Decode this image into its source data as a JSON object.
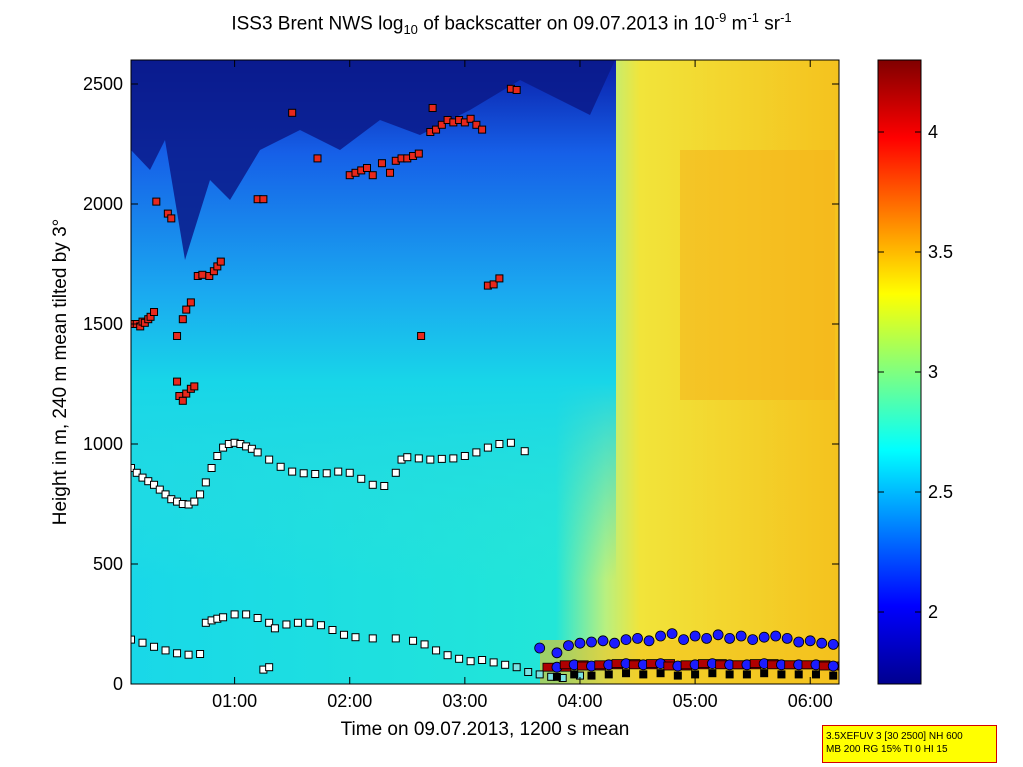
{
  "title": {
    "prefix": "ISS3 Brent NWS log",
    "sub": "10",
    "middle": " of backscatter on 09.07.2013 in 10",
    "exp1": "-9",
    "unit_m": " m",
    "exp2": "-1",
    "unit_sr": " sr",
    "exp3": "-1"
  },
  "info_box": {
    "line1": "3.5XEFUV 3 [30 2500] NH 600",
    "line2": "MB 200 RG 15% TI 0 HI 15"
  },
  "colors": {
    "marker_red": "#e8281c",
    "marker_white": "#ffffff",
    "marker_cyan": "#7be3e3",
    "marker_blue": "#1c1cff",
    "marker_darkred": "#b00000"
  },
  "chart_data": {
    "type": "heatmap",
    "title": "ISS3 Brent NWS log10 of backscatter on 09.07.2013 in 10-9 m-1 sr-1",
    "xlabel": "Time on 09.07.2013, 1200 s mean",
    "ylabel": "Height in m, 240 m mean tilted by 3°",
    "xlim_hours": [
      0.1,
      6.25
    ],
    "ylim": [
      0,
      2600
    ],
    "x_ticks": [
      {
        "value": 1,
        "label": "01:00"
      },
      {
        "value": 2,
        "label": "02:00"
      },
      {
        "value": 3,
        "label": "03:00"
      },
      {
        "value": 4,
        "label": "04:00"
      },
      {
        "value": 5,
        "label": "05:00"
      },
      {
        "value": 6,
        "label": "06:00"
      }
    ],
    "y_ticks": [
      {
        "value": 0,
        "label": "0"
      },
      {
        "value": 500,
        "label": "500"
      },
      {
        "value": 1000,
        "label": "1000"
      },
      {
        "value": 1500,
        "label": "1500"
      },
      {
        "value": 2000,
        "label": "2000"
      },
      {
        "value": 2500,
        "label": "2500"
      }
    ],
    "colorbar": {
      "range": [
        1.7,
        4.3
      ],
      "ticks": [
        {
          "value": 2,
          "label": "2"
        },
        {
          "value": 2.5,
          "label": "2.5"
        },
        {
          "value": 3,
          "label": "3"
        },
        {
          "value": 3.5,
          "label": "3.5"
        },
        {
          "value": 4,
          "label": "4"
        }
      ]
    },
    "cloud_layer_red": [
      [
        0.12,
        1500
      ],
      [
        0.15,
        1500
      ],
      [
        0.18,
        1490
      ],
      [
        0.2,
        1510
      ],
      [
        0.22,
        1505
      ],
      [
        0.25,
        1520
      ],
      [
        0.27,
        1530
      ],
      [
        0.3,
        1550
      ],
      [
        0.32,
        2010
      ],
      [
        0.42,
        1960
      ],
      [
        0.45,
        1940
      ],
      [
        0.5,
        1450
      ],
      [
        0.55,
        1520
      ],
      [
        0.58,
        1560
      ],
      [
        0.62,
        1590
      ],
      [
        0.5,
        1260
      ],
      [
        0.52,
        1200
      ],
      [
        0.55,
        1180
      ],
      [
        0.58,
        1210
      ],
      [
        0.62,
        1230
      ],
      [
        0.65,
        1240
      ],
      [
        0.68,
        1700
      ],
      [
        0.72,
        1705
      ],
      [
        0.78,
        1700
      ],
      [
        0.82,
        1720
      ],
      [
        0.85,
        1740
      ],
      [
        0.88,
        1760
      ],
      [
        1.2,
        2020
      ],
      [
        1.25,
        2020
      ],
      [
        1.5,
        2380
      ],
      [
        1.72,
        2190
      ],
      [
        2.0,
        2120
      ],
      [
        2.05,
        2130
      ],
      [
        2.1,
        2140
      ],
      [
        2.15,
        2150
      ],
      [
        2.2,
        2120
      ],
      [
        2.28,
        2170
      ],
      [
        2.35,
        2130
      ],
      [
        2.4,
        2180
      ],
      [
        2.45,
        2190
      ],
      [
        2.5,
        2190
      ],
      [
        2.55,
        2200
      ],
      [
        2.6,
        2210
      ],
      [
        2.62,
        1450
      ],
      [
        2.7,
        2300
      ],
      [
        2.75,
        2310
      ],
      [
        2.8,
        2330
      ],
      [
        2.85,
        2350
      ],
      [
        2.9,
        2340
      ],
      [
        2.95,
        2350
      ],
      [
        3.0,
        2340
      ],
      [
        3.05,
        2355
      ],
      [
        3.1,
        2330
      ],
      [
        3.15,
        2310
      ],
      [
        2.72,
        2400
      ],
      [
        3.2,
        1660
      ],
      [
        3.25,
        1665
      ],
      [
        3.3,
        1690
      ],
      [
        3.4,
        2480
      ],
      [
        3.45,
        2475
      ]
    ],
    "upper_boundary_white": [
      [
        0.1,
        900
      ],
      [
        0.15,
        880
      ],
      [
        0.2,
        860
      ],
      [
        0.25,
        845
      ],
      [
        0.3,
        830
      ],
      [
        0.35,
        810
      ],
      [
        0.4,
        790
      ],
      [
        0.45,
        770
      ],
      [
        0.5,
        760
      ],
      [
        0.55,
        750
      ],
      [
        0.6,
        748
      ],
      [
        0.65,
        760
      ],
      [
        0.7,
        790
      ],
      [
        0.75,
        840
      ],
      [
        0.8,
        900
      ],
      [
        0.85,
        950
      ],
      [
        0.9,
        985
      ],
      [
        0.95,
        1000
      ],
      [
        1.0,
        1005
      ],
      [
        1.05,
        1000
      ],
      [
        1.1,
        990
      ],
      [
        1.15,
        980
      ],
      [
        1.2,
        965
      ],
      [
        1.3,
        935
      ],
      [
        1.4,
        905
      ],
      [
        1.5,
        885
      ],
      [
        1.6,
        878
      ],
      [
        1.7,
        875
      ],
      [
        1.8,
        878
      ],
      [
        1.9,
        885
      ],
      [
        2.0,
        880
      ],
      [
        2.1,
        855
      ],
      [
        2.2,
        830
      ],
      [
        2.3,
        825
      ],
      [
        2.4,
        880
      ],
      [
        2.45,
        935
      ],
      [
        2.5,
        945
      ],
      [
        2.6,
        940
      ],
      [
        2.7,
        935
      ],
      [
        2.8,
        938
      ],
      [
        2.9,
        940
      ],
      [
        3.0,
        950
      ],
      [
        3.1,
        965
      ],
      [
        3.2,
        985
      ],
      [
        3.3,
        1000
      ],
      [
        3.4,
        1005
      ],
      [
        3.52,
        970
      ]
    ],
    "lower_boundary": [
      [
        0.1,
        185
      ],
      [
        0.2,
        172
      ],
      [
        0.3,
        155
      ],
      [
        0.4,
        140
      ],
      [
        0.5,
        128
      ],
      [
        0.6,
        122
      ],
      [
        0.7,
        125
      ],
      [
        0.75,
        255
      ],
      [
        0.8,
        265
      ],
      [
        0.85,
        272
      ],
      [
        0.9,
        278
      ],
      [
        1.0,
        290
      ],
      [
        1.1,
        290
      ],
      [
        1.2,
        275
      ],
      [
        1.3,
        255
      ],
      [
        1.35,
        232
      ],
      [
        1.45,
        248
      ],
      [
        1.55,
        255
      ],
      [
        1.65,
        255
      ],
      [
        1.75,
        245
      ],
      [
        1.85,
        225
      ],
      [
        1.95,
        205
      ],
      [
        2.05,
        195
      ],
      [
        2.2,
        190
      ],
      [
        2.4,
        190
      ],
      [
        2.55,
        180
      ],
      [
        2.65,
        165
      ],
      [
        2.75,
        140
      ],
      [
        2.85,
        120
      ],
      [
        2.95,
        105
      ],
      [
        3.05,
        95
      ],
      [
        3.15,
        100
      ],
      [
        3.25,
        90
      ],
      [
        3.35,
        80
      ],
      [
        3.45,
        70
      ],
      [
        3.55,
        50
      ],
      [
        3.65,
        40
      ],
      [
        3.75,
        30
      ],
      [
        3.85,
        25
      ],
      [
        4.0,
        35
      ],
      [
        1.25,
        60
      ],
      [
        1.3,
        70
      ]
    ],
    "low_cloud_blue_top": [
      [
        3.65,
        150
      ],
      [
        3.8,
        130
      ],
      [
        3.9,
        160
      ],
      [
        4.0,
        170
      ],
      [
        4.1,
        175
      ],
      [
        4.2,
        180
      ],
      [
        4.3,
        170
      ],
      [
        4.4,
        185
      ],
      [
        4.5,
        190
      ],
      [
        4.6,
        180
      ],
      [
        4.7,
        200
      ],
      [
        4.8,
        210
      ],
      [
        4.9,
        185
      ],
      [
        5.0,
        200
      ],
      [
        5.1,
        190
      ],
      [
        5.2,
        205
      ],
      [
        5.3,
        190
      ],
      [
        5.4,
        200
      ],
      [
        5.5,
        185
      ],
      [
        5.6,
        195
      ],
      [
        5.7,
        200
      ],
      [
        5.8,
        190
      ],
      [
        5.9,
        175
      ],
      [
        6.0,
        180
      ],
      [
        6.1,
        170
      ],
      [
        6.2,
        165
      ]
    ],
    "low_cloud_blue_base": [
      [
        3.8,
        70
      ],
      [
        3.95,
        80
      ],
      [
        4.1,
        75
      ],
      [
        4.25,
        80
      ],
      [
        4.4,
        85
      ],
      [
        4.55,
        80
      ],
      [
        4.7,
        85
      ],
      [
        4.85,
        75
      ],
      [
        5.0,
        80
      ],
      [
        5.15,
        85
      ],
      [
        5.3,
        80
      ],
      [
        5.45,
        80
      ],
      [
        5.6,
        85
      ],
      [
        5.75,
        80
      ],
      [
        5.9,
        80
      ],
      [
        6.05,
        80
      ],
      [
        6.2,
        75
      ]
    ]
  }
}
